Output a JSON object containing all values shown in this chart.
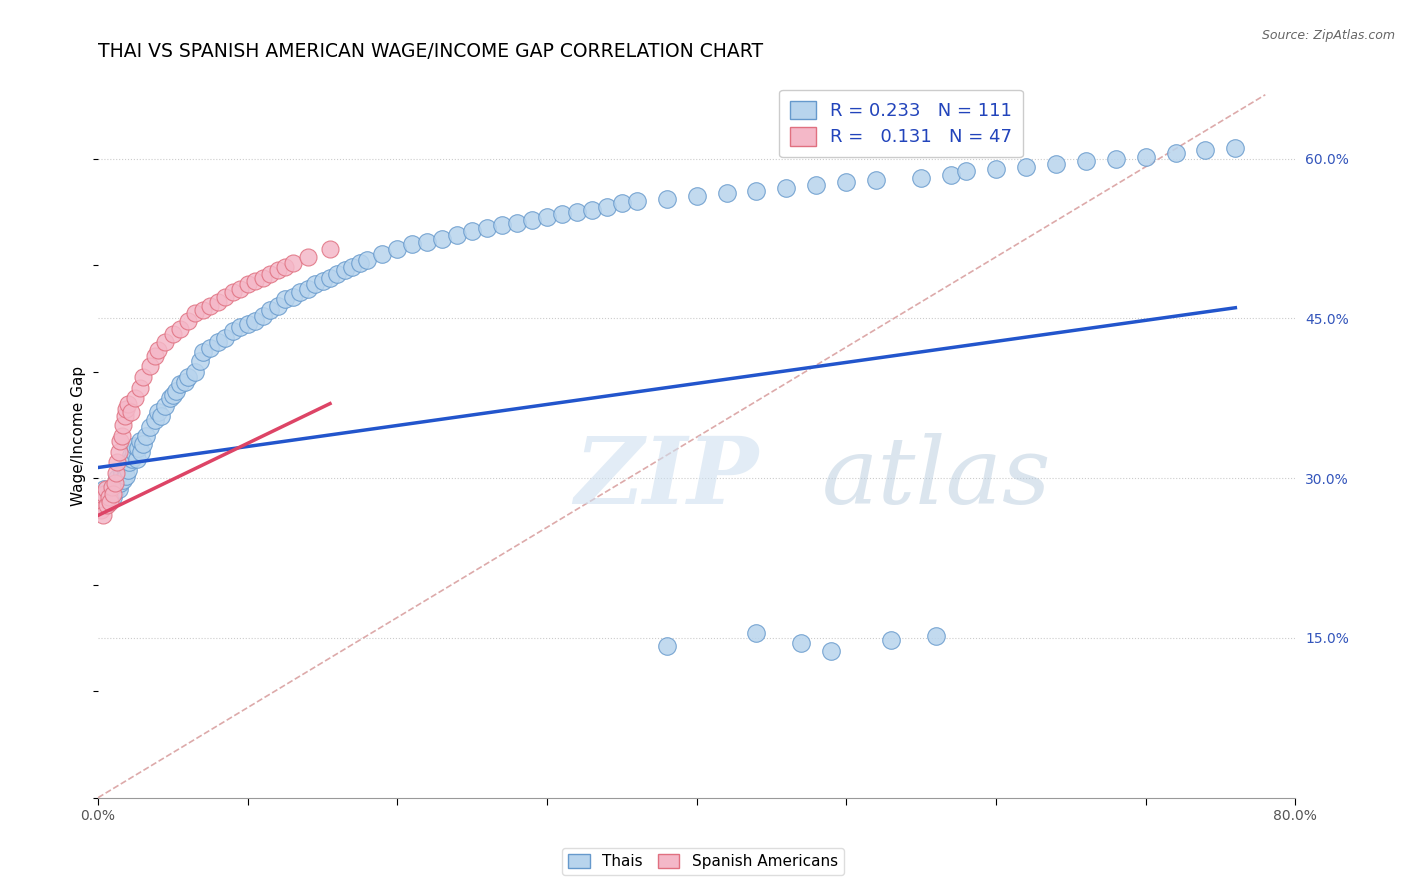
{
  "title": "THAI VS SPANISH AMERICAN WAGE/INCOME GAP CORRELATION CHART",
  "source": "Source: ZipAtlas.com",
  "ylabel": "Wage/Income Gap",
  "xlim": [
    0.0,
    0.8
  ],
  "ylim": [
    0.0,
    0.68
  ],
  "yticks_right": [
    0.15,
    0.3,
    0.45,
    0.6
  ],
  "ytick_labels_right": [
    "15.0%",
    "30.0%",
    "45.0%",
    "60.0%"
  ],
  "R_thai": 0.233,
  "N_thai": 111,
  "R_spanish": 0.131,
  "N_spanish": 47,
  "thai_color": "#b8d4ed",
  "thai_edge": "#6699cc",
  "spanish_color": "#f4b8c8",
  "spanish_edge": "#e07080",
  "thai_line_color": "#2255cc",
  "spanish_line_color": "#dd4466",
  "ref_line_color": "#ddaaaa",
  "thai_scatter_x": [
    0.001,
    0.002,
    0.003,
    0.004,
    0.005,
    0.006,
    0.007,
    0.008,
    0.009,
    0.01,
    0.011,
    0.012,
    0.013,
    0.014,
    0.015,
    0.016,
    0.017,
    0.018,
    0.019,
    0.02,
    0.021,
    0.022,
    0.023,
    0.024,
    0.025,
    0.026,
    0.027,
    0.028,
    0.029,
    0.03,
    0.032,
    0.035,
    0.038,
    0.04,
    0.042,
    0.045,
    0.048,
    0.05,
    0.052,
    0.055,
    0.058,
    0.06,
    0.065,
    0.068,
    0.07,
    0.075,
    0.08,
    0.085,
    0.09,
    0.095,
    0.1,
    0.105,
    0.11,
    0.115,
    0.12,
    0.125,
    0.13,
    0.135,
    0.14,
    0.145,
    0.15,
    0.155,
    0.16,
    0.165,
    0.17,
    0.175,
    0.18,
    0.19,
    0.2,
    0.21,
    0.22,
    0.23,
    0.24,
    0.25,
    0.26,
    0.27,
    0.28,
    0.29,
    0.3,
    0.31,
    0.32,
    0.33,
    0.34,
    0.35,
    0.36,
    0.38,
    0.4,
    0.42,
    0.44,
    0.46,
    0.48,
    0.5,
    0.52,
    0.55,
    0.57,
    0.58,
    0.6,
    0.62,
    0.64,
    0.66,
    0.68,
    0.7,
    0.72,
    0.74,
    0.76,
    0.38,
    0.44,
    0.47,
    0.49,
    0.53,
    0.56
  ],
  "thai_scatter_y": [
    0.285,
    0.28,
    0.275,
    0.29,
    0.285,
    0.282,
    0.278,
    0.283,
    0.288,
    0.282,
    0.288,
    0.295,
    0.3,
    0.29,
    0.295,
    0.305,
    0.298,
    0.31,
    0.302,
    0.308,
    0.315,
    0.322,
    0.318,
    0.325,
    0.33,
    0.318,
    0.328,
    0.335,
    0.325,
    0.332,
    0.34,
    0.348,
    0.355,
    0.362,
    0.358,
    0.368,
    0.375,
    0.378,
    0.382,
    0.388,
    0.39,
    0.395,
    0.4,
    0.41,
    0.418,
    0.422,
    0.428,
    0.432,
    0.438,
    0.442,
    0.445,
    0.448,
    0.452,
    0.458,
    0.462,
    0.468,
    0.47,
    0.475,
    0.478,
    0.482,
    0.485,
    0.488,
    0.492,
    0.495,
    0.498,
    0.502,
    0.505,
    0.51,
    0.515,
    0.52,
    0.522,
    0.525,
    0.528,
    0.532,
    0.535,
    0.538,
    0.54,
    0.542,
    0.545,
    0.548,
    0.55,
    0.552,
    0.555,
    0.558,
    0.56,
    0.562,
    0.565,
    0.568,
    0.57,
    0.572,
    0.575,
    0.578,
    0.58,
    0.582,
    0.585,
    0.588,
    0.59,
    0.592,
    0.595,
    0.598,
    0.6,
    0.602,
    0.605,
    0.608,
    0.61,
    0.142,
    0.155,
    0.145,
    0.138,
    0.148,
    0.152
  ],
  "spanish_scatter_x": [
    0.001,
    0.002,
    0.003,
    0.004,
    0.005,
    0.006,
    0.007,
    0.008,
    0.009,
    0.01,
    0.011,
    0.012,
    0.013,
    0.014,
    0.015,
    0.016,
    0.017,
    0.018,
    0.019,
    0.02,
    0.022,
    0.025,
    0.028,
    0.03,
    0.035,
    0.038,
    0.04,
    0.045,
    0.05,
    0.055,
    0.06,
    0.065,
    0.07,
    0.075,
    0.08,
    0.085,
    0.09,
    0.095,
    0.1,
    0.105,
    0.11,
    0.115,
    0.12,
    0.125,
    0.13,
    0.14,
    0.155
  ],
  "spanish_scatter_y": [
    0.28,
    0.27,
    0.265,
    0.285,
    0.29,
    0.275,
    0.282,
    0.278,
    0.292,
    0.285,
    0.295,
    0.305,
    0.315,
    0.325,
    0.335,
    0.34,
    0.35,
    0.358,
    0.365,
    0.37,
    0.362,
    0.375,
    0.385,
    0.395,
    0.405,
    0.415,
    0.42,
    0.428,
    0.435,
    0.44,
    0.448,
    0.455,
    0.458,
    0.462,
    0.465,
    0.47,
    0.475,
    0.478,
    0.482,
    0.485,
    0.488,
    0.492,
    0.495,
    0.498,
    0.502,
    0.508,
    0.515
  ],
  "thai_line_x": [
    0.0,
    0.76
  ],
  "thai_line_y": [
    0.31,
    0.46
  ],
  "spanish_line_x": [
    0.0,
    0.155
  ],
  "spanish_line_y": [
    0.265,
    0.37
  ],
  "ref_line_x": [
    0.0,
    0.78
  ],
  "ref_line_y": [
    0.0,
    0.66
  ]
}
